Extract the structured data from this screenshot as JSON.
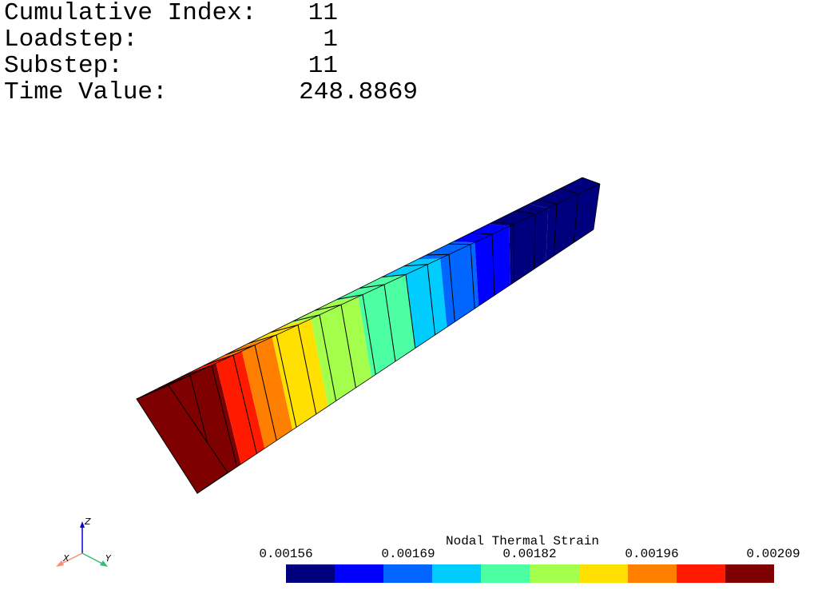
{
  "step_info": {
    "rows": [
      {
        "label": "Cumulative Index:",
        "value": "11"
      },
      {
        "label": "Loadstep:",
        "value": "1"
      },
      {
        "label": "Substep:",
        "value": "11"
      },
      {
        "label": "Time Value:",
        "value": "248.8869"
      }
    ]
  },
  "legend": {
    "title": "Nodal Thermal Strain",
    "ticks": [
      "0.00156",
      "0.00169",
      "0.00182",
      "0.00196",
      "0.00209"
    ],
    "colors": [
      "#00007f",
      "#0000ff",
      "#0066ff",
      "#00ccff",
      "#4cffa3",
      "#a3ff4c",
      "#ffe000",
      "#ff7f00",
      "#ff1a00",
      "#7f0000"
    ]
  },
  "triad": {
    "x": "X",
    "y": "Y",
    "z": "Z"
  }
}
